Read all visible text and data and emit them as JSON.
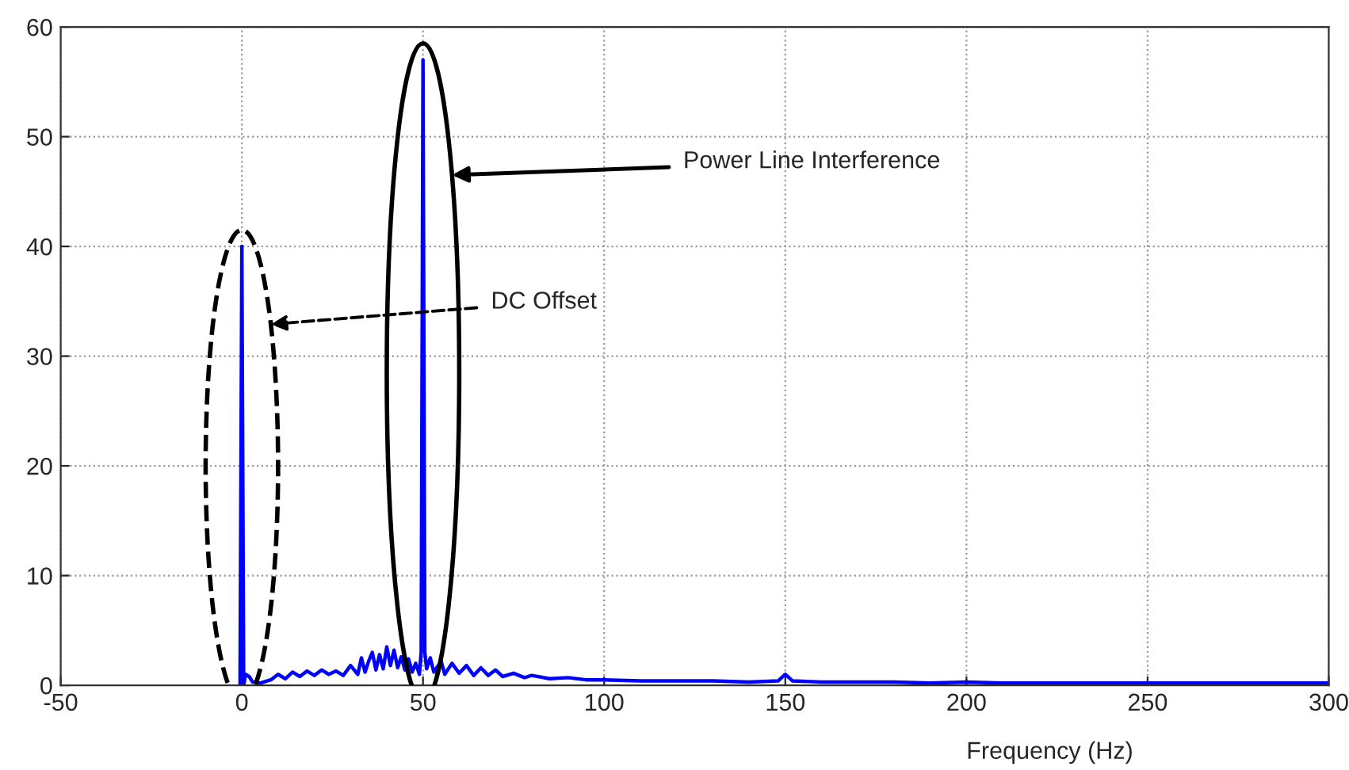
{
  "chart_data": {
    "type": "line",
    "xlabel": "Frequency (Hz)",
    "xlim": [
      -50,
      300
    ],
    "ylim": [
      0,
      60
    ],
    "xticks": [
      -50,
      0,
      50,
      100,
      150,
      200,
      250,
      300
    ],
    "yticks": [
      0,
      10,
      20,
      30,
      40,
      50,
      60
    ],
    "grid": true,
    "marker": "none",
    "line_style": "solid",
    "series": [
      {
        "color": "#0000ff",
        "x": [
          -0.5,
          0,
          0.5,
          1,
          2,
          3,
          5,
          8,
          10,
          12,
          14,
          16,
          18,
          20,
          22,
          24,
          26,
          28,
          30,
          32,
          33,
          34,
          35,
          36,
          37,
          38,
          39,
          40,
          41,
          42,
          43,
          44,
          45,
          46,
          47,
          48,
          49,
          49.5,
          50,
          50.5,
          51,
          52,
          53,
          55,
          56,
          58,
          60,
          62,
          64,
          66,
          68,
          70,
          72,
          75,
          78,
          80,
          85,
          90,
          95,
          100,
          110,
          120,
          130,
          140,
          148,
          150,
          152,
          160,
          170,
          180,
          190,
          200,
          210,
          250,
          300
        ],
        "values": [
          0,
          40,
          0,
          1,
          0.8,
          0.3,
          0.2,
          0.5,
          1.0,
          0.6,
          1.2,
          0.8,
          1.3,
          0.9,
          1.4,
          1.0,
          1.3,
          0.9,
          1.8,
          1.0,
          2.5,
          1.2,
          2.2,
          3.0,
          1.4,
          2.8,
          1.5,
          3.5,
          1.8,
          3.2,
          1.6,
          2.6,
          1.4,
          2.4,
          1.2,
          2.0,
          1.0,
          3,
          57,
          3,
          1.5,
          2.5,
          1.2,
          2.2,
          1.0,
          2.0,
          1.1,
          1.8,
          0.9,
          1.6,
          0.9,
          1.4,
          0.8,
          1.1,
          0.7,
          0.9,
          0.6,
          0.7,
          0.5,
          0.5,
          0.4,
          0.4,
          0.4,
          0.3,
          0.4,
          1.0,
          0.4,
          0.3,
          0.3,
          0.3,
          0.2,
          0.3,
          0.2,
          0.2,
          0.2
        ]
      }
    ],
    "annotations": [
      "DC Offset",
      "Power Line Interference"
    ]
  }
}
